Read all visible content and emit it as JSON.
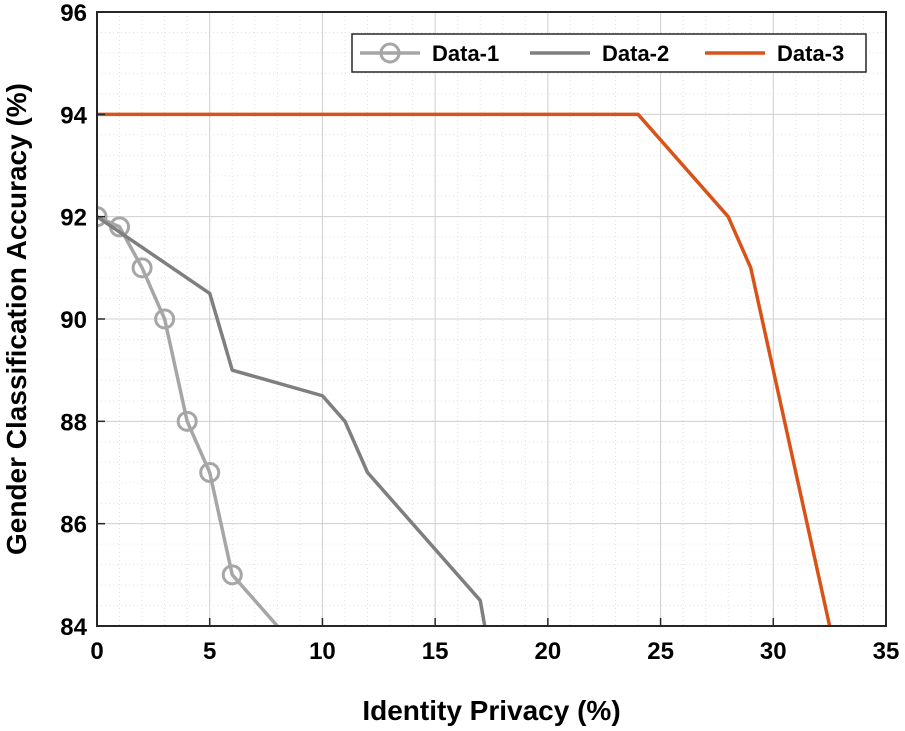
{
  "chart_data": {
    "type": "line",
    "title": "",
    "xlabel": "Identity Privacy (%)",
    "ylabel": "Gender Classification Accuracy (%)",
    "xlim": [
      0,
      35
    ],
    "ylim": [
      84,
      96
    ],
    "xticks": [
      0,
      5,
      10,
      15,
      20,
      25,
      30,
      35
    ],
    "yticks": [
      84,
      86,
      88,
      90,
      92,
      94,
      96
    ],
    "grid": true,
    "minor_grid": true,
    "legend_position": "top-right",
    "series": [
      {
        "name": "Data-1",
        "color": "#a6a6a6",
        "marker": "circle",
        "x": [
          0,
          1,
          2,
          3,
          4,
          5,
          6,
          8
        ],
        "y": [
          92,
          91.8,
          91,
          90,
          88,
          87,
          85,
          84
        ]
      },
      {
        "name": "Data-2",
        "color": "#7f7f7f",
        "marker": "none",
        "x": [
          0,
          5,
          6,
          10,
          11,
          12,
          17,
          17.2
        ],
        "y": [
          92,
          90.5,
          89,
          88.5,
          88,
          87,
          84.5,
          84
        ]
      },
      {
        "name": "Data-3",
        "color": "#d95319",
        "marker": "none",
        "x": [
          0,
          24,
          28,
          29,
          32.5
        ],
        "y": [
          94,
          94,
          92,
          91,
          84
        ]
      }
    ]
  }
}
